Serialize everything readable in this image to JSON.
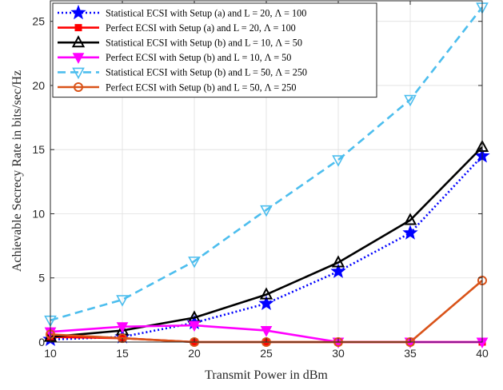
{
  "chart_data": {
    "type": "line",
    "xlabel": "Transmit Power in dBm",
    "ylabel": "Achievable Secrecy Rate in bits/sec/Hz",
    "xlim": [
      10,
      40
    ],
    "ylim": [
      0,
      26.6
    ],
    "xticks": [
      10,
      15,
      20,
      25,
      30,
      35,
      40
    ],
    "yticks": [
      0,
      5,
      10,
      15,
      20,
      25
    ],
    "grid": true,
    "legend_position": "top-left",
    "x": [
      10,
      15,
      20,
      25,
      30,
      35,
      40
    ],
    "series": [
      {
        "name": "Statistical ECSI with Setup (a) and L = 20, Λ = 100",
        "values": [
          0.2,
          0.4,
          1.5,
          3.0,
          5.5,
          8.5,
          14.5
        ],
        "color": "#0000ff",
        "line": "dotted",
        "marker": "star"
      },
      {
        "name": "Perfect ECSI with Setup (a) and L = 20, Λ = 100",
        "values": [
          0.4,
          0.3,
          0.0,
          0.0,
          0.0,
          0.0,
          0.0
        ],
        "color": "#ff0000",
        "line": "solid",
        "marker": "square"
      },
      {
        "name": "Statistical ECSI with Setup (b) and L = 10, Λ = 50",
        "values": [
          0.4,
          0.9,
          1.9,
          3.7,
          6.2,
          9.5,
          15.2
        ],
        "color": "#000000",
        "line": "solid",
        "marker": "triangle-up"
      },
      {
        "name": "Perfect ECSI with Setup (b) and L = 10, Λ = 50",
        "values": [
          0.8,
          1.2,
          1.3,
          0.9,
          0.0,
          0.0,
          0.0
        ],
        "color": "#ff00ff",
        "line": "solid",
        "marker": "triangle-down"
      },
      {
        "name": "Statistical ECSI with Setup (b) and L = 50, Λ = 250",
        "values": [
          1.7,
          3.3,
          6.3,
          10.3,
          14.2,
          18.9,
          26.1
        ],
        "color": "#4dbeee",
        "line": "dashed",
        "marker": "triangle-down-open"
      },
      {
        "name": "Perfect ECSI with Setup (b) and L = 50, Λ = 250",
        "values": [
          0.6,
          0.3,
          0.0,
          0.0,
          0.0,
          0.0,
          4.8
        ],
        "color": "#d95319",
        "line": "solid",
        "marker": "circle"
      }
    ]
  }
}
